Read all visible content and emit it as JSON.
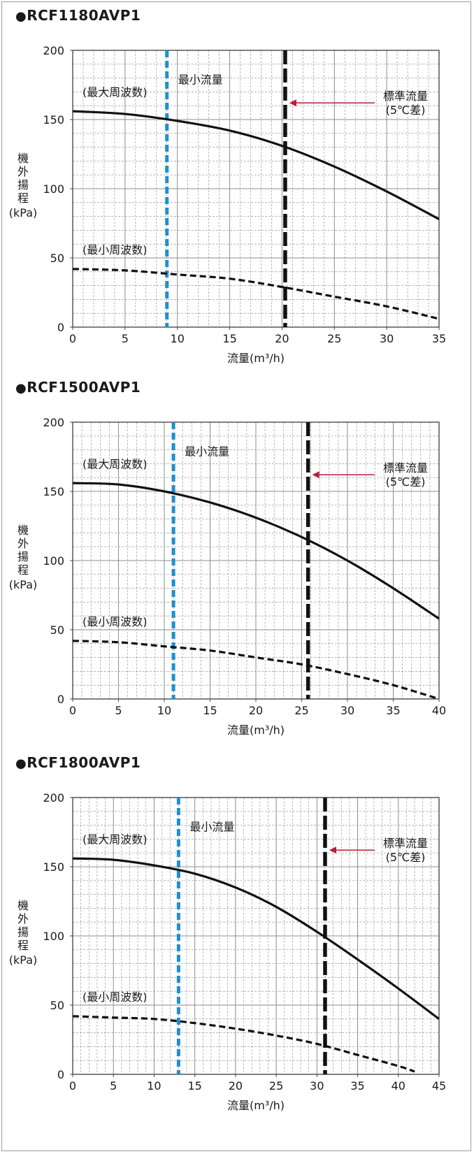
{
  "charts": [
    {
      "title": "RCF1180AVP1",
      "chart_data": {
        "type": "line",
        "title": "RCF1180AVP1",
        "xlabel": "流量(m³/h)",
        "ylabel": "機外揚程(kPa)",
        "xlim": [
          0,
          35
        ],
        "ylim": [
          0,
          200
        ],
        "xticks": [
          0,
          5,
          10,
          15,
          20,
          25,
          30,
          35
        ],
        "yticks": [
          0,
          50,
          100,
          150,
          200
        ],
        "grid": true,
        "series": [
          {
            "name": "(最大周波数)",
            "style": "solid",
            "color": "#111111",
            "x": [
              0,
              5,
              10,
              15,
              20,
              25,
              30,
              35
            ],
            "y": [
              156,
              154,
              149,
              142,
              131,
              116,
              98,
              78
            ]
          },
          {
            "name": "(最小周波数)",
            "style": "dashed",
            "color": "#111111",
            "x": [
              0,
              5,
              10,
              15,
              20,
              25,
              30,
              35
            ],
            "y": [
              42,
              41,
              38,
              35,
              29,
              22,
              15,
              6
            ]
          }
        ],
        "vlines": [
          {
            "x": 9,
            "label": "最小流量",
            "color": "#1f8fd1"
          },
          {
            "x": 20.3,
            "label": "標準流量\n(5℃差)",
            "color": "#111111"
          }
        ]
      }
    },
    {
      "title": "RCF1500AVP1",
      "chart_data": {
        "type": "line",
        "title": "RCF1500AVP1",
        "xlabel": "流量(m³/h)",
        "ylabel": "機外揚程(kPa)",
        "xlim": [
          0,
          40
        ],
        "ylim": [
          0,
          200
        ],
        "xticks": [
          0,
          5,
          10,
          15,
          20,
          25,
          30,
          35,
          40
        ],
        "yticks": [
          0,
          50,
          100,
          150,
          200
        ],
        "grid": true,
        "series": [
          {
            "name": "(最大周波数)",
            "style": "solid",
            "color": "#111111",
            "x": [
              0,
              5,
              10,
              15,
              20,
              25,
              30,
              35,
              40
            ],
            "y": [
              156,
              155,
              150,
              142,
              131,
              117,
              100,
              80,
              58
            ]
          },
          {
            "name": "(最小周波数)",
            "style": "dashed",
            "color": "#111111",
            "x": [
              0,
              5,
              10,
              15,
              20,
              25,
              30,
              35,
              40
            ],
            "y": [
              42,
              41,
              38,
              35,
              30,
              25,
              18,
              10,
              0
            ]
          }
        ],
        "vlines": [
          {
            "x": 11,
            "label": "最小流量",
            "color": "#1f8fd1"
          },
          {
            "x": 25.7,
            "label": "標準流量\n(5℃差)",
            "color": "#111111"
          }
        ]
      }
    },
    {
      "title": "RCF1800AVP1",
      "chart_data": {
        "type": "line",
        "title": "RCF1800AVP1",
        "xlabel": "流量(m³/h)",
        "ylabel": "機外揚程(kPa)",
        "xlim": [
          0,
          45
        ],
        "ylim": [
          0,
          200
        ],
        "xticks": [
          0,
          5,
          10,
          15,
          20,
          25,
          30,
          35,
          40,
          45
        ],
        "yticks": [
          0,
          50,
          100,
          150,
          200
        ],
        "grid": true,
        "series": [
          {
            "name": "(最大周波数)",
            "style": "solid",
            "color": "#111111",
            "x": [
              0,
              5,
              10,
              15,
              20,
              25,
              30,
              35,
              40,
              45
            ],
            "y": [
              156,
              155,
              151,
              145,
              135,
              121,
              103,
              83,
              62,
              40
            ]
          },
          {
            "name": "(最小周波数)",
            "style": "dashed",
            "color": "#111111",
            "x": [
              0,
              5,
              10,
              15,
              20,
              25,
              30,
              35,
              40,
              42
            ],
            "y": [
              42,
              41,
              40,
              37,
              33,
              28,
              22,
              14,
              6,
              2
            ]
          }
        ],
        "vlines": [
          {
            "x": 13,
            "label": "最小流量",
            "color": "#1f8fd1"
          },
          {
            "x": 31,
            "label": "標準流量\n(5℃差)",
            "color": "#111111"
          }
        ]
      }
    }
  ],
  "colors": {
    "grid": "#8c8c8c",
    "axis": "#4a4a4a",
    "arrow": "#b0203a",
    "min_flow_line": "#1f8fd1",
    "std_flow_line": "#111111"
  }
}
